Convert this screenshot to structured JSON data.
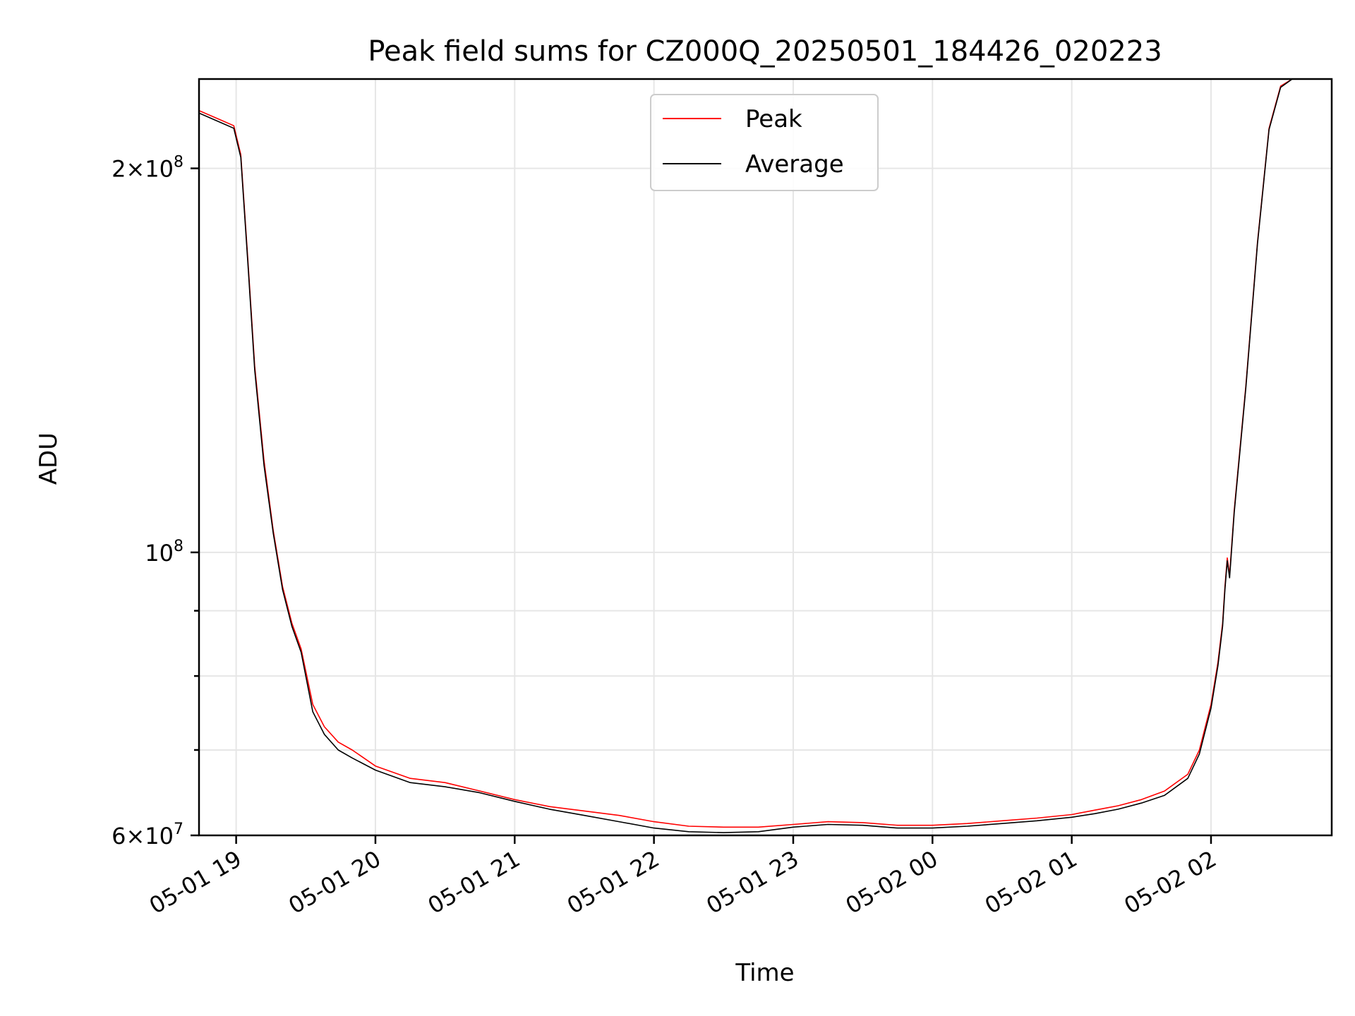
{
  "chart_data": {
    "type": "line",
    "title": "Peak field sums for CZ000Q_20250501_184426_020223",
    "xlabel": "Time",
    "ylabel": "ADU",
    "y_scale": "log",
    "grid": true,
    "legend_position": "upper center",
    "xlim": [
      "2025-05-01 18:44",
      "2025-05-02 02:52"
    ],
    "ylim": [
      60000000,
      235000000
    ],
    "x_ticks": [
      {
        "time": "2025-05-01 19:00",
        "label": "05-01 19"
      },
      {
        "time": "2025-05-01 20:00",
        "label": "05-01 20"
      },
      {
        "time": "2025-05-01 21:00",
        "label": "05-01 21"
      },
      {
        "time": "2025-05-01 22:00",
        "label": "05-01 22"
      },
      {
        "time": "2025-05-01 23:00",
        "label": "05-01 23"
      },
      {
        "time": "2025-05-02 00:00",
        "label": "05-02 00"
      },
      {
        "time": "2025-05-02 01:00",
        "label": "05-02 01"
      },
      {
        "time": "2025-05-02 02:00",
        "label": "05-02 02"
      }
    ],
    "y_ticks_major": [
      {
        "value": 200000000,
        "base": "2×10",
        "exp": "8"
      },
      {
        "value": 100000000,
        "base": "10",
        "exp": "8"
      },
      {
        "value": 60000000,
        "base": "6×10",
        "exp": "7"
      }
    ],
    "y_ticks_minor": [
      70000000,
      80000000,
      90000000
    ],
    "series": [
      {
        "name": "Peak",
        "color": "#ff0000",
        "x": [
          "2025-05-01 18:44",
          "2025-05-01 18:54",
          "2025-05-01 18:59",
          "2025-05-01 19:02",
          "2025-05-01 19:05",
          "2025-05-01 19:08",
          "2025-05-01 19:12",
          "2025-05-01 19:16",
          "2025-05-01 19:20",
          "2025-05-01 19:24",
          "2025-05-01 19:28",
          "2025-05-01 19:33",
          "2025-05-01 19:38",
          "2025-05-01 19:44",
          "2025-05-01 19:50",
          "2025-05-01 20:00",
          "2025-05-01 20:15",
          "2025-05-01 20:30",
          "2025-05-01 20:45",
          "2025-05-01 21:00",
          "2025-05-01 21:15",
          "2025-05-01 21:30",
          "2025-05-01 21:45",
          "2025-05-01 22:00",
          "2025-05-01 22:15",
          "2025-05-01 22:30",
          "2025-05-01 22:45",
          "2025-05-01 23:00",
          "2025-05-01 23:15",
          "2025-05-01 23:30",
          "2025-05-01 23:45",
          "2025-05-02 00:00",
          "2025-05-02 00:15",
          "2025-05-02 00:30",
          "2025-05-02 00:45",
          "2025-05-02 01:00",
          "2025-05-02 01:10",
          "2025-05-02 01:20",
          "2025-05-02 01:30",
          "2025-05-02 01:40",
          "2025-05-02 01:50",
          "2025-05-02 01:55",
          "2025-05-02 02:00",
          "2025-05-02 02:03",
          "2025-05-02 02:05",
          "2025-05-02 02:06",
          "2025-05-02 02:07",
          "2025-05-02 02:08",
          "2025-05-02 02:10",
          "2025-05-02 02:15",
          "2025-05-02 02:20",
          "2025-05-02 02:25",
          "2025-05-02 02:30",
          "2025-05-02 02:35",
          "2025-05-02 02:40",
          "2025-05-02 02:52"
        ],
        "y": [
          222000000,
          218000000,
          216000000,
          205000000,
          170000000,
          140000000,
          118000000,
          104000000,
          94000000,
          88000000,
          84000000,
          76000000,
          73000000,
          71000000,
          70000000,
          68000000,
          66500000,
          66000000,
          65000000,
          64000000,
          63200000,
          62700000,
          62200000,
          61500000,
          61000000,
          60900000,
          60900000,
          61200000,
          61500000,
          61400000,
          61100000,
          61100000,
          61300000,
          61600000,
          61900000,
          62300000,
          62800000,
          63300000,
          64000000,
          65000000,
          67000000,
          70000000,
          76000000,
          82000000,
          88000000,
          94000000,
          99000000,
          96000000,
          108000000,
          135000000,
          175000000,
          215000000,
          232000000,
          235000000,
          235000000,
          235000000
        ]
      },
      {
        "name": "Average",
        "color": "#000000",
        "x": [
          "2025-05-01 18:44",
          "2025-05-01 18:54",
          "2025-05-01 18:59",
          "2025-05-01 19:02",
          "2025-05-01 19:05",
          "2025-05-01 19:08",
          "2025-05-01 19:12",
          "2025-05-01 19:16",
          "2025-05-01 19:20",
          "2025-05-01 19:24",
          "2025-05-01 19:28",
          "2025-05-01 19:33",
          "2025-05-01 19:38",
          "2025-05-01 19:44",
          "2025-05-01 19:50",
          "2025-05-01 20:00",
          "2025-05-01 20:15",
          "2025-05-01 20:30",
          "2025-05-01 20:45",
          "2025-05-01 21:00",
          "2025-05-01 21:15",
          "2025-05-01 21:30",
          "2025-05-01 21:45",
          "2025-05-01 22:00",
          "2025-05-01 22:15",
          "2025-05-01 22:30",
          "2025-05-01 22:45",
          "2025-05-01 23:00",
          "2025-05-01 23:15",
          "2025-05-01 23:30",
          "2025-05-01 23:45",
          "2025-05-02 00:00",
          "2025-05-02 00:15",
          "2025-05-02 00:30",
          "2025-05-02 00:45",
          "2025-05-02 01:00",
          "2025-05-02 01:10",
          "2025-05-02 01:20",
          "2025-05-02 01:30",
          "2025-05-02 01:40",
          "2025-05-02 01:50",
          "2025-05-02 01:55",
          "2025-05-02 02:00",
          "2025-05-02 02:03",
          "2025-05-02 02:05",
          "2025-05-02 02:06",
          "2025-05-02 02:07",
          "2025-05-02 02:08",
          "2025-05-02 02:10",
          "2025-05-02 02:15",
          "2025-05-02 02:20",
          "2025-05-02 02:25",
          "2025-05-02 02:30",
          "2025-05-02 02:35",
          "2025-05-02 02:40",
          "2025-05-02 02:52"
        ],
        "y": [
          221000000,
          217000000,
          215000000,
          204000000,
          169000000,
          139000000,
          117000000,
          103500000,
          93500000,
          87500000,
          83500000,
          75000000,
          72000000,
          70000000,
          69000000,
          67500000,
          66000000,
          65500000,
          64800000,
          63800000,
          62900000,
          62200000,
          61500000,
          60800000,
          60400000,
          60300000,
          60400000,
          60900000,
          61200000,
          61100000,
          60800000,
          60800000,
          61000000,
          61300000,
          61600000,
          62000000,
          62400000,
          62900000,
          63600000,
          64500000,
          66500000,
          69500000,
          75500000,
          81500000,
          87500000,
          93500000,
          98500000,
          95500000,
          107500000,
          134500000,
          174500000,
          214500000,
          231500000,
          235000000,
          235000000,
          235000000
        ]
      }
    ]
  }
}
